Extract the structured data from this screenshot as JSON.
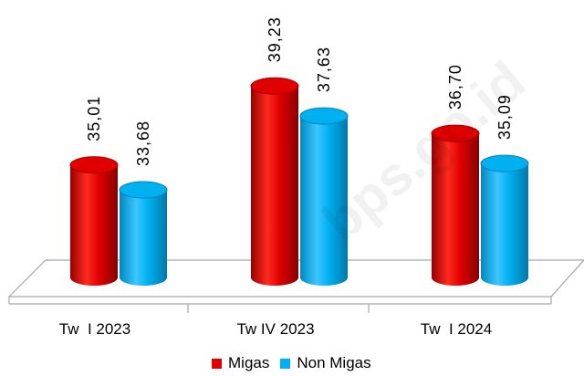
{
  "chart_data": {
    "type": "bar",
    "categories": [
      "Tw  I 2023",
      "Tw IV 2023",
      "Tw  I 2024"
    ],
    "series": [
      {
        "name": "Migas",
        "values": [
          "35,01",
          "39,23",
          "36,70"
        ],
        "numeric": [
          35.01,
          39.23,
          36.7
        ],
        "color": "#e00000"
      },
      {
        "name": "Non Migas",
        "values": [
          "33,68",
          "37,63",
          "35,09"
        ],
        "numeric": [
          33.68,
          37.63,
          35.09
        ],
        "color": "#00b0f0"
      }
    ],
    "title": "",
    "xlabel": "",
    "ylabel": "",
    "ylim": [
      29,
      40
    ],
    "legend_position": "bottom",
    "style": "3d-cylinder"
  },
  "watermark": "bps.go.id"
}
